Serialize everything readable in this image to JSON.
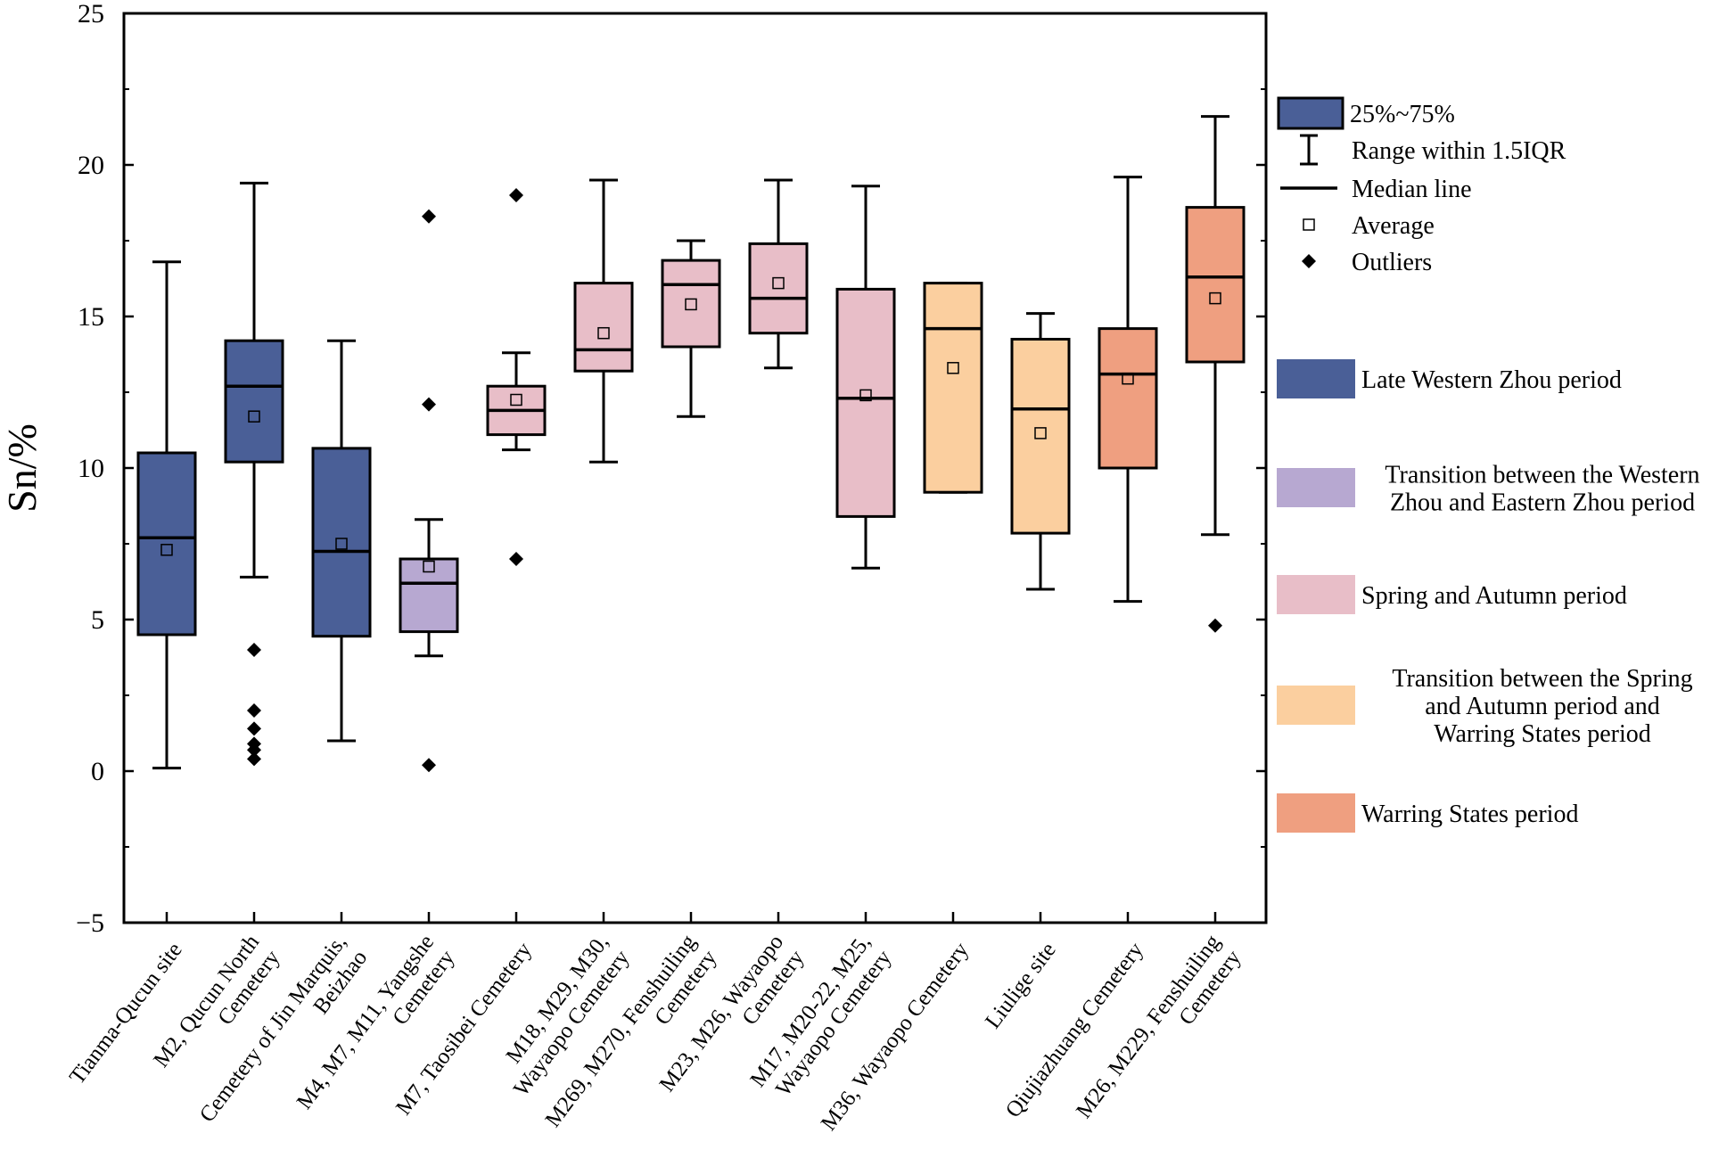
{
  "chart_data": {
    "type": "box",
    "ylabel": "Sn/%",
    "ylim": [
      -5,
      25
    ],
    "yticks": [
      -5,
      0,
      5,
      10,
      15,
      20,
      25
    ],
    "categories": [
      {
        "lines": [
          "Tianma-Qucun site"
        ],
        "group": 0,
        "q1": 4.5,
        "median": 7.7,
        "q3": 10.5,
        "whisker_low": 0.1,
        "whisker_high": 16.8,
        "mean": 7.3,
        "outliers": []
      },
      {
        "lines": [
          "M2, Qucun North",
          "Cemetery"
        ],
        "group": 0,
        "q1": 10.2,
        "median": 12.7,
        "q3": 14.2,
        "whisker_low": 6.4,
        "whisker_high": 19.4,
        "mean": 11.7,
        "outliers": [
          4.0,
          2.0,
          1.4,
          0.9,
          0.7,
          0.4
        ]
      },
      {
        "lines": [
          "Cemetery of Jin Marquis,",
          "Beizhao"
        ],
        "group": 0,
        "q1": 4.45,
        "median": 7.25,
        "q3": 10.65,
        "whisker_low": 1.0,
        "whisker_high": 14.2,
        "mean": 7.5,
        "outliers": []
      },
      {
        "lines": [
          "M4, M7, M11, Yangshe",
          "Cemetery"
        ],
        "group": 1,
        "q1": 4.6,
        "median": 6.2,
        "q3": 7.0,
        "whisker_low": 3.8,
        "whisker_high": 8.3,
        "mean": 6.75,
        "outliers": [
          18.3,
          12.1,
          0.2
        ]
      },
      {
        "lines": [
          "M7, Taosibei Cemetery"
        ],
        "group": 2,
        "q1": 11.1,
        "median": 11.9,
        "q3": 12.7,
        "whisker_low": 10.6,
        "whisker_high": 13.8,
        "mean": 12.25,
        "outliers": [
          19.0,
          7.0
        ]
      },
      {
        "lines": [
          "M18, M29, M30,",
          "Wayaopo Cemetery"
        ],
        "group": 2,
        "q1": 13.2,
        "median": 13.9,
        "q3": 16.1,
        "whisker_low": 10.2,
        "whisker_high": 19.5,
        "mean": 14.45,
        "outliers": []
      },
      {
        "lines": [
          "M269, M270, Fenshuiling",
          "Cemetery"
        ],
        "group": 2,
        "q1": 14.0,
        "median": 16.05,
        "q3": 16.85,
        "whisker_low": 11.7,
        "whisker_high": 17.5,
        "mean": 15.4,
        "outliers": []
      },
      {
        "lines": [
          "M23, M26, Wayaopo",
          "Cemetery"
        ],
        "group": 2,
        "q1": 14.45,
        "median": 15.6,
        "q3": 17.4,
        "whisker_low": 13.3,
        "whisker_high": 19.5,
        "mean": 16.1,
        "outliers": []
      },
      {
        "lines": [
          "M17, M20-22, M25,",
          "Wayaopo Cemetery"
        ],
        "group": 2,
        "q1": 8.4,
        "median": 12.3,
        "q3": 15.9,
        "whisker_low": 6.7,
        "whisker_high": 19.3,
        "mean": 12.4,
        "outliers": []
      },
      {
        "lines": [
          "M36, Wayaopo Cemetery"
        ],
        "group": 3,
        "q1": 9.2,
        "median": 14.6,
        "q3": 16.1,
        "whisker_low": 9.2,
        "whisker_high": 16.1,
        "mean": 13.3,
        "outliers": []
      },
      {
        "lines": [
          "Liulige site"
        ],
        "group": 3,
        "q1": 7.85,
        "median": 11.95,
        "q3": 14.25,
        "whisker_low": 6.0,
        "whisker_high": 15.1,
        "mean": 11.15,
        "outliers": []
      },
      {
        "lines": [
          "Qiujiazhuang Cemetery"
        ],
        "group": 4,
        "q1": 10.0,
        "median": 13.1,
        "q3": 14.6,
        "whisker_low": 5.6,
        "whisker_high": 19.6,
        "mean": 12.95,
        "outliers": []
      },
      {
        "lines": [
          "M26, M229, Fenshuiling",
          "Cemetery"
        ],
        "group": 4,
        "q1": 13.5,
        "median": 16.3,
        "q3": 18.6,
        "whisker_low": 7.8,
        "whisker_high": 21.6,
        "mean": 15.6,
        "outliers": [
          4.8
        ]
      }
    ],
    "groups": [
      {
        "lines": [
          "Late Western Zhou period"
        ],
        "color": "#4a5f97"
      },
      {
        "lines": [
          "Transition between the Western",
          "Zhou and Eastern Zhou period"
        ],
        "color": "#b7a8d1"
      },
      {
        "lines": [
          "Spring and Autumn period"
        ],
        "color": "#e8bec8"
      },
      {
        "lines": [
          "Transition between the Spring",
          "and Autumn period and",
          "Warring States period"
        ],
        "color": "#fbcf9f"
      },
      {
        "lines": [
          "Warring States period"
        ],
        "color": "#ef9f80"
      }
    ],
    "symbol_legend": [
      {
        "key": "box",
        "label": "25%~75%"
      },
      {
        "key": "range",
        "label": "Range within 1.5IQR"
      },
      {
        "key": "median",
        "label": "Median line"
      },
      {
        "key": "mean",
        "label": "Average"
      },
      {
        "key": "outlier",
        "label": "Outliers"
      }
    ]
  }
}
